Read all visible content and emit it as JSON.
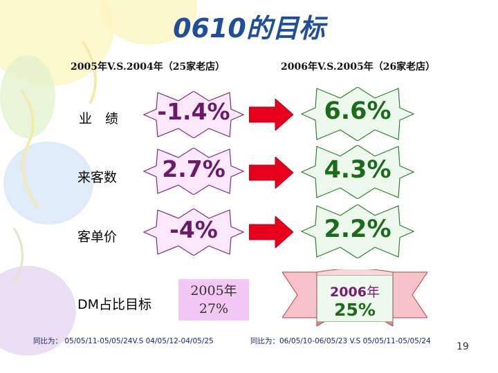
{
  "title": "0610的目标",
  "columns": {
    "left_header": "2005年V.S.2004年（25家老店）",
    "right_header": "2006年V.S.2005年（26家老店）"
  },
  "rows": [
    {
      "label": "业　绩",
      "prev": "-1.4%",
      "target": "6.6%"
    },
    {
      "label": "来客数",
      "prev": "2.7%",
      "target": "4.3%"
    },
    {
      "label": "客单价",
      "prev": "-4%",
      "target": "2.2%"
    }
  ],
  "dm": {
    "label": "DM占比目标",
    "prev_year": "2005年",
    "prev_value": "27%",
    "target_year_num": "2006",
    "target_year_suffix": "年",
    "target_value": "25%"
  },
  "footer": {
    "left": "同比为： 05/05/11-05/05/24V.S 04/05/12-04/05/25",
    "right": "同比为：06/05/10-06/05/23 V.S 05/05/11-05/05/24"
  },
  "page_number": "19",
  "colors": {
    "title": "#1f4e9c",
    "arrow": "#e8001c",
    "old_value": "#6b1a6b",
    "new_value": "#1a6b1a",
    "seal_fill": "#eef9ee",
    "ribbon_fill": "#f6c3c8"
  }
}
